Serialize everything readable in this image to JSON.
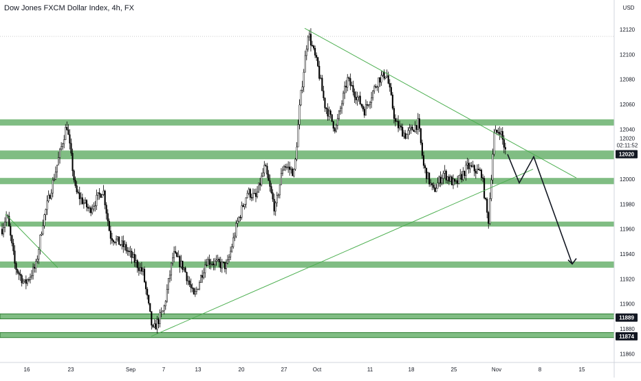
{
  "chart_data": {
    "type": "candlestick",
    "title": "Dow Jones FXCM Dollar Index, 4h, FX",
    "currency_label": "USD",
    "y_ticks": [
      11860,
      11880,
      11900,
      11920,
      11940,
      11960,
      11980,
      12000,
      12020,
      12040,
      12060,
      12080,
      12100,
      12120
    ],
    "y_range": [
      11851,
      12127
    ],
    "x_ticks": [
      "16",
      "23",
      "Sep",
      "7",
      "13",
      "20",
      "27",
      "Oct",
      "11",
      "18",
      "25",
      "Nov",
      "8",
      "15"
    ],
    "last_price": {
      "value": "12020",
      "countdown": "02:11:52"
    },
    "price_badges": [
      "12020",
      "11889",
      "11874"
    ],
    "support_resistance_zones": [
      [
        12043,
        12048
      ],
      [
        12016,
        12023
      ],
      [
        11996,
        12001
      ],
      [
        11962,
        11966
      ],
      [
        11929,
        11934
      ],
      [
        11888,
        11892
      ],
      [
        11873,
        11877
      ]
    ],
    "anchor_points": [
      {
        "label": "16",
        "low": 11920,
        "high": 11992
      },
      {
        "label": "23",
        "low": 11962,
        "high": 12046
      },
      {
        "label": "Sep",
        "low": 11930,
        "high": 11996
      },
      {
        "label": "7",
        "low": 11874,
        "high": 11944
      },
      {
        "label": "13",
        "low": 11900,
        "high": 11960
      },
      {
        "label": "20",
        "low": 11962,
        "high": 12002
      },
      {
        "label": "27",
        "low": 11970,
        "high": 12022
      },
      {
        "label": "Oct",
        "low": 12020,
        "high": 12116
      },
      {
        "label": "11",
        "low": 12028,
        "high": 12084
      },
      {
        "label": "18",
        "low": 11976,
        "high": 12052
      },
      {
        "label": "25",
        "low": 11980,
        "high": 12016
      },
      {
        "label": "Nov",
        "low": 11964,
        "high": 12040
      }
    ],
    "trendlines": [
      {
        "name": "descending resistance",
        "from": {
          "label": "Oct",
          "value": 12121
        },
        "to": {
          "label": "8",
          "value": 12001
        }
      },
      {
        "name": "ascending support",
        "from": {
          "label": "7",
          "value": 11874
        },
        "to": {
          "label": "Nov",
          "value": 12008
        }
      }
    ],
    "projection_path_values": [
      12020,
      11997,
      12018,
      11932
    ],
    "colors": {
      "zone_fill": "#80bd83",
      "zone_border": "#2e7d32",
      "trendline": "#4caf50",
      "candle_up": "#ffffff",
      "candle_outline": "#000000",
      "badge_bg": "#131722",
      "badge_text": "#ffffff"
    }
  }
}
